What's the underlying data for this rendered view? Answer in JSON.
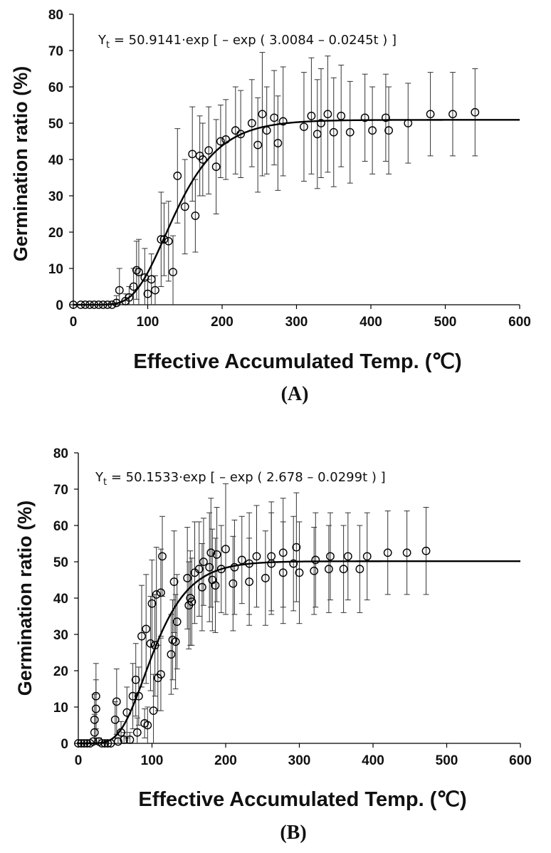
{
  "chart_data": [
    {
      "type": "scatter",
      "panel_label": "(A)",
      "xlabel": "Effective Accumulated  Temp. (℃)",
      "ylabel": "Germination ratio (%)",
      "xlim": [
        0,
        600
      ],
      "ylim": [
        0,
        80
      ],
      "x_ticks": [
        "0",
        "100",
        "200",
        "300",
        "400",
        "500",
        "600"
      ],
      "y_ticks": [
        "0",
        "10",
        "20",
        "30",
        "40",
        "50",
        "60",
        "70",
        "80"
      ],
      "equation_prefix": "Y",
      "equation_sub": "t",
      "equation_rest": " = 50.9141·exp [ – exp ( 3.0084 – 0.0245t ) ]",
      "model": {
        "a": 50.9141,
        "b": 3.0084,
        "c": 0.0245
      },
      "points": [
        [
          0,
          0,
          0
        ],
        [
          10,
          0,
          0
        ],
        [
          16,
          0,
          0
        ],
        [
          22,
          0,
          0
        ],
        [
          28,
          0,
          0
        ],
        [
          34,
          0,
          0
        ],
        [
          40,
          0,
          0
        ],
        [
          46,
          0,
          0
        ],
        [
          52,
          0,
          0
        ],
        [
          58,
          0.5,
          2
        ],
        [
          62,
          4,
          6
        ],
        [
          70,
          1,
          2
        ],
        [
          75,
          2,
          3
        ],
        [
          81,
          5,
          5
        ],
        [
          85,
          9.5,
          8
        ],
        [
          88,
          9,
          9
        ],
        [
          96,
          7.5,
          8
        ],
        [
          100,
          3,
          4
        ],
        [
          105,
          7,
          7
        ],
        [
          110,
          4,
          4
        ],
        [
          118,
          18,
          13
        ],
        [
          122,
          18,
          10
        ],
        [
          128,
          17.5,
          11
        ],
        [
          134,
          9,
          10
        ],
        [
          140,
          35.5,
          13
        ],
        [
          150,
          27,
          13
        ],
        [
          160,
          41.5,
          13
        ],
        [
          164,
          24.5,
          10
        ],
        [
          170,
          41,
          11
        ],
        [
          174,
          40,
          10
        ],
        [
          182,
          42.5,
          12
        ],
        [
          192,
          38,
          13
        ],
        [
          198,
          45,
          10
        ],
        [
          205,
          45.5,
          11
        ],
        [
          218,
          48,
          12
        ],
        [
          225,
          47,
          12
        ],
        [
          240,
          50,
          12
        ],
        [
          248,
          44,
          13
        ],
        [
          254,
          52.5,
          17
        ],
        [
          260,
          48,
          12
        ],
        [
          270,
          51.5,
          13
        ],
        [
          275,
          44.5,
          13
        ],
        [
          282,
          50.5,
          15
        ],
        [
          310,
          49,
          15
        ],
        [
          320,
          52,
          16
        ],
        [
          328,
          47,
          15
        ],
        [
          333,
          50,
          15
        ],
        [
          342,
          52.5,
          16
        ],
        [
          350,
          47.5,
          15
        ],
        [
          360,
          52,
          14
        ],
        [
          372,
          47.5,
          14
        ],
        [
          392,
          51.5,
          12
        ],
        [
          402,
          48,
          12
        ],
        [
          420,
          51.5,
          12
        ],
        [
          424,
          48,
          12
        ],
        [
          450,
          50,
          11
        ],
        [
          480,
          52.5,
          11.5
        ],
        [
          510,
          52.5,
          11.5
        ],
        [
          540,
          53,
          12
        ]
      ]
    },
    {
      "type": "scatter",
      "panel_label": "(B)",
      "xlabel": "Effective Accumulated  Temp. (℃)",
      "ylabel": "Germination ratio (%)",
      "xlim": [
        0,
        600
      ],
      "ylim": [
        0,
        80
      ],
      "x_ticks": [
        "0",
        "100",
        "200",
        "300",
        "400",
        "500",
        "600"
      ],
      "y_ticks": [
        "0",
        "10",
        "20",
        "30",
        "40",
        "50",
        "60",
        "70",
        "80"
      ],
      "equation_prefix": "Y",
      "equation_sub": "t",
      "equation_rest": " = 50.1533·exp [ – exp ( 2.678 – 0.0299t ) ]",
      "model": {
        "a": 50.1533,
        "b": 2.678,
        "c": 0.0299
      },
      "points": [
        [
          0,
          0,
          0
        ],
        [
          4,
          0,
          0
        ],
        [
          8,
          0,
          0
        ],
        [
          12,
          0,
          0
        ],
        [
          16,
          0,
          0
        ],
        [
          20,
          0.5,
          0
        ],
        [
          22,
          3,
          5
        ],
        [
          22,
          6.5,
          7
        ],
        [
          24,
          9.5,
          8
        ],
        [
          24,
          13,
          9
        ],
        [
          28,
          0.5,
          1
        ],
        [
          32,
          0,
          0
        ],
        [
          36,
          0,
          0
        ],
        [
          40,
          0,
          0
        ],
        [
          44,
          0,
          0
        ],
        [
          50,
          6.5,
          5
        ],
        [
          52,
          11.5,
          9
        ],
        [
          54,
          0.5,
          1
        ],
        [
          58,
          3,
          3
        ],
        [
          62,
          1,
          2
        ],
        [
          66,
          8.5,
          7
        ],
        [
          70,
          1,
          2
        ],
        [
          74,
          13,
          9
        ],
        [
          78,
          17.5,
          10
        ],
        [
          80,
          3,
          4
        ],
        [
          82,
          13,
          8
        ],
        [
          86,
          29.5,
          14
        ],
        [
          90,
          5.5,
          4
        ],
        [
          92,
          31.5,
          15
        ],
        [
          94,
          5,
          5
        ],
        [
          98,
          27.5,
          13
        ],
        [
          100,
          38.5,
          12
        ],
        [
          102,
          9,
          10
        ],
        [
          104,
          27,
          14
        ],
        [
          106,
          41,
          13
        ],
        [
          108,
          18,
          9
        ],
        [
          112,
          19,
          10
        ],
        [
          112,
          41.5,
          12
        ],
        [
          114,
          51.5,
          11
        ],
        [
          126,
          24.5,
          11
        ],
        [
          128,
          28.5,
          11
        ],
        [
          130,
          44.5,
          14
        ],
        [
          132,
          28,
          13
        ],
        [
          134,
          33.5,
          13
        ],
        [
          148,
          45.5,
          14
        ],
        [
          150,
          38,
          12
        ],
        [
          152,
          40,
          13
        ],
        [
          154,
          39,
          12
        ],
        [
          158,
          47,
          14
        ],
        [
          164,
          48,
          13
        ],
        [
          168,
          43,
          12
        ],
        [
          170,
          50,
          12
        ],
        [
          178,
          48.5,
          15
        ],
        [
          180,
          52.5,
          15
        ],
        [
          182,
          45,
          14
        ],
        [
          186,
          43.5,
          13
        ],
        [
          188,
          52,
          13
        ],
        [
          194,
          48,
          12
        ],
        [
          200,
          53.5,
          18
        ],
        [
          210,
          44,
          13
        ],
        [
          212,
          48.5,
          13
        ],
        [
          222,
          50.5,
          12
        ],
        [
          232,
          44.5,
          12
        ],
        [
          232,
          49.5,
          14
        ],
        [
          242,
          51.5,
          14
        ],
        [
          254,
          45.5,
          13
        ],
        [
          262,
          49.5,
          14
        ],
        [
          262,
          51.5,
          15
        ],
        [
          278,
          47,
          14
        ],
        [
          278,
          52.5,
          15
        ],
        [
          292,
          49.5,
          13
        ],
        [
          296,
          54,
          15
        ],
        [
          300,
          47,
          14
        ],
        [
          320,
          47.5,
          12
        ],
        [
          322,
          50.5,
          13
        ],
        [
          340,
          48,
          12
        ],
        [
          342,
          51.5,
          12
        ],
        [
          360,
          48,
          12
        ],
        [
          366,
          51.5,
          12
        ],
        [
          382,
          48,
          12
        ],
        [
          392,
          51.5,
          12
        ],
        [
          420,
          52.5,
          11.5
        ],
        [
          446,
          52.5,
          11.5
        ],
        [
          472,
          53,
          12
        ]
      ]
    }
  ]
}
